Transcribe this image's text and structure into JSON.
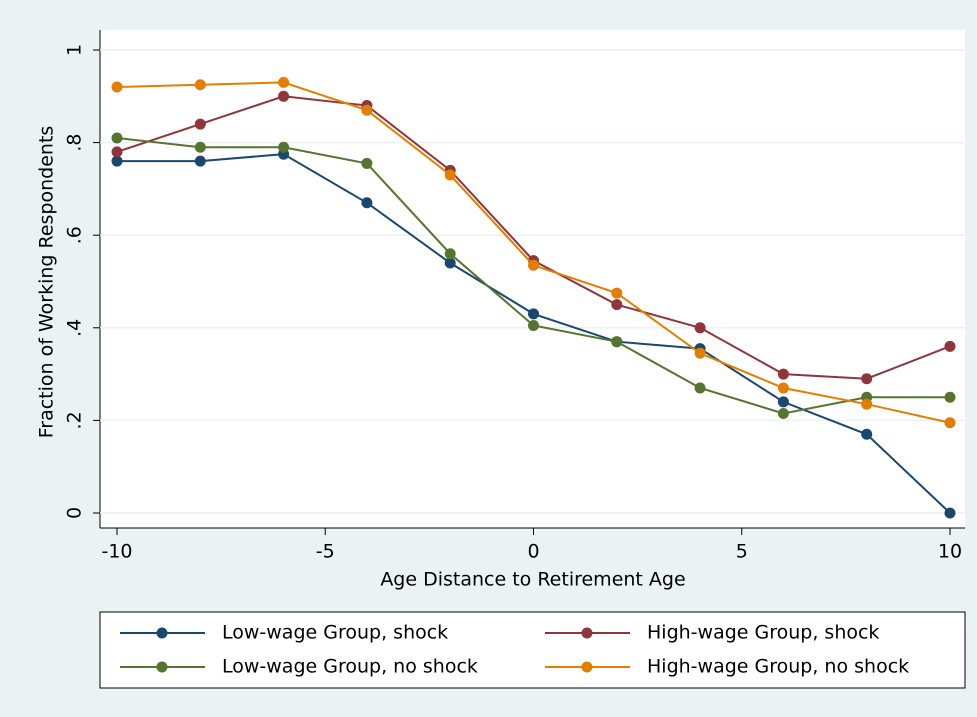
{
  "chart_data": {
    "type": "line",
    "xlabel": "Age Distance to Retirement Age",
    "ylabel": "Fraction of Working Respondents",
    "x": [
      -10,
      -8,
      -6,
      -4,
      -2,
      0,
      2,
      4,
      6,
      8,
      10
    ],
    "series": [
      {
        "name": "Low-wage Group, shock",
        "color": "#1a476f",
        "values": [
          0.76,
          0.76,
          0.775,
          0.67,
          0.54,
          0.43,
          0.37,
          0.355,
          0.24,
          0.17,
          0
        ]
      },
      {
        "name": "High-wage Group, shock",
        "color": "#90353b",
        "values": [
          0.78,
          0.84,
          0.9,
          0.88,
          0.74,
          0.545,
          0.45,
          0.4,
          0.3,
          0.29,
          0.36
        ]
      },
      {
        "name": "Low-wage Group, no shock",
        "color": "#55752f",
        "values": [
          0.81,
          0.79,
          0.79,
          0.755,
          0.56,
          0.405,
          0.37,
          0.27,
          0.215,
          0.25,
          0.25
        ]
      },
      {
        "name": "High-wage Group, no shock",
        "color": "#e37e00",
        "values": [
          0.92,
          0.925,
          0.93,
          0.87,
          0.73,
          0.535,
          0.475,
          0.345,
          0.27,
          0.235,
          0.195
        ]
      }
    ],
    "xlim": [
      -10,
      10
    ],
    "xticks": [
      -10,
      -5,
      0,
      5,
      10
    ],
    "ylim": [
      0,
      1
    ],
    "yticks": [
      0,
      {
        "value": 0.2,
        "label": ".2"
      },
      {
        "value": 0.4,
        "label": ".4"
      },
      {
        "value": 0.6,
        "label": ".6"
      },
      {
        "value": 0.8,
        "label": ".8"
      },
      1
    ],
    "grid": true
  }
}
